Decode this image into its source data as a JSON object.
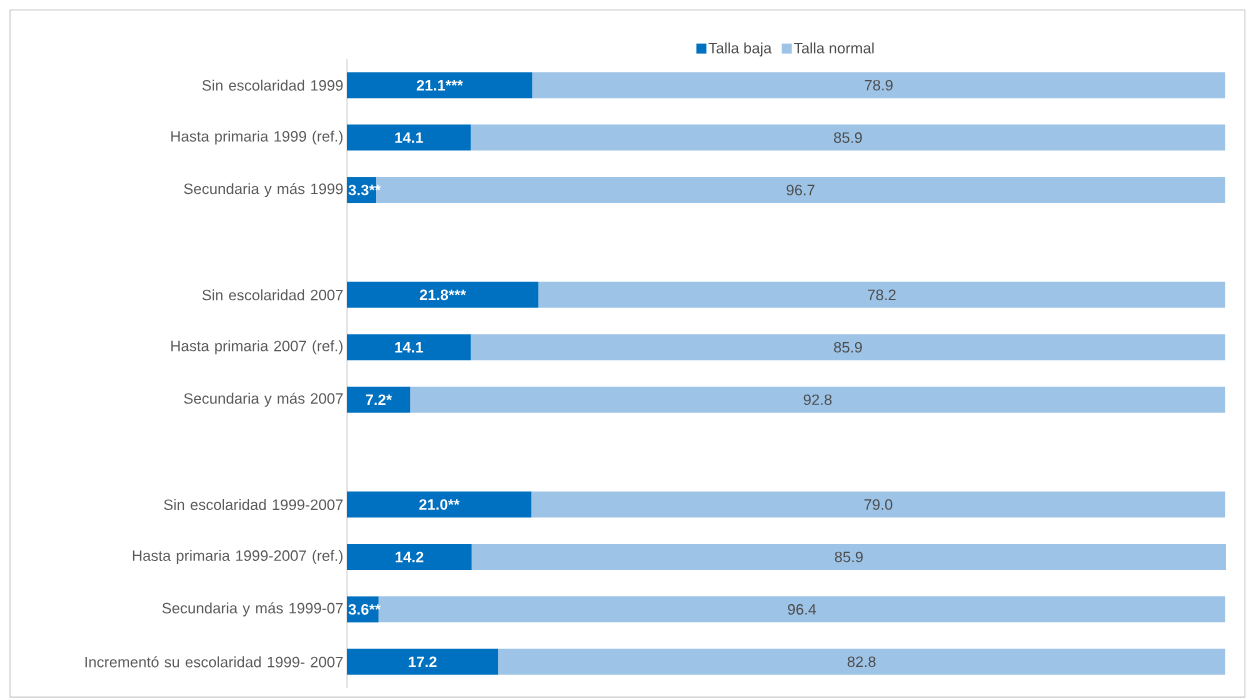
{
  "chart_data": {
    "type": "bar",
    "orientation": "horizontal",
    "stacked": true,
    "legend": "top",
    "categories": [
      "Sin escolaridad 1999",
      "Hasta primaria 1999  (ref.)",
      "Secundaria y más 1999",
      null,
      "Sin escolaridad 2007",
      "Hasta primaria 2007  (ref.)",
      "Secundaria y más 2007",
      null,
      "Sin escolaridad 1999-2007",
      "Hasta primaria 1999-2007 (ref.)",
      "Secundaria y más 1999-07",
      "Incrementó su escolaridad 1999- 2007"
    ],
    "series": [
      {
        "name": "Talla baja",
        "color": "#0070c0",
        "values": [
          21.1,
          14.1,
          3.3,
          null,
          21.8,
          14.1,
          7.2,
          null,
          21.0,
          14.2,
          3.6,
          17.2
        ],
        "value_labels": [
          "21.1***",
          "14.1",
          "3.3**",
          null,
          "21.8***",
          "14.1",
          "7.2*",
          null,
          "21.0**",
          "14.2",
          "3.6**",
          "17.2"
        ]
      },
      {
        "name": "Talla normal",
        "color": "#9dc3e6",
        "values": [
          78.9,
          85.9,
          96.7,
          null,
          78.2,
          85.9,
          92.8,
          null,
          79.0,
          85.9,
          96.4,
          82.8
        ],
        "value_labels": [
          "78.9",
          "85.9",
          "96.7",
          null,
          "78.2",
          "85.9",
          "92.8",
          null,
          "79.0",
          "85.9",
          "96.4",
          "82.8"
        ]
      }
    ]
  }
}
